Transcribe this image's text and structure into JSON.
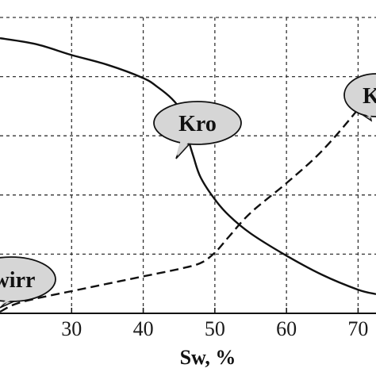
{
  "chart_data": {
    "type": "line",
    "title": "",
    "xlabel": "Sw, %",
    "ylabel": "",
    "xlim": [
      20,
      72.5
    ],
    "ylim": [
      0,
      1
    ],
    "grid": true,
    "grid_style": "dashed",
    "x_ticks": [
      30,
      40,
      50,
      60,
      70
    ],
    "x_tick_labels": [
      "30",
      "40",
      "50",
      "60",
      "70"
    ],
    "series": [
      {
        "name": "Kro",
        "line_style": "solid",
        "color": "#111111",
        "points": [
          [
            20,
            0.93
          ],
          [
            25,
            0.91
          ],
          [
            30,
            0.873
          ],
          [
            35,
            0.84
          ],
          [
            40,
            0.795
          ],
          [
            42,
            0.765
          ],
          [
            44,
            0.725
          ],
          [
            45,
            0.69
          ],
          [
            46,
            0.61
          ],
          [
            47,
            0.53
          ],
          [
            48,
            0.46
          ],
          [
            50,
            0.385
          ],
          [
            52,
            0.33
          ],
          [
            55,
            0.27
          ],
          [
            60,
            0.195
          ],
          [
            65,
            0.13
          ],
          [
            70,
            0.08
          ],
          [
            72.5,
            0.065
          ]
        ]
      },
      {
        "name": "Krw",
        "line_style": "dashed",
        "color": "#111111",
        "points": [
          [
            20,
            0.005
          ],
          [
            22,
            0.03
          ],
          [
            25,
            0.05
          ],
          [
            30,
            0.075
          ],
          [
            35,
            0.1
          ],
          [
            40,
            0.125
          ],
          [
            45,
            0.15
          ],
          [
            48,
            0.17
          ],
          [
            50,
            0.205
          ],
          [
            52,
            0.26
          ],
          [
            55,
            0.34
          ],
          [
            60,
            0.44
          ],
          [
            65,
            0.55
          ],
          [
            70,
            0.69
          ],
          [
            72.5,
            0.775
          ]
        ]
      }
    ],
    "annotations": [
      {
        "text": "Kro"
      },
      {
        "text": "wirr"
      },
      {
        "text": "K"
      }
    ]
  }
}
